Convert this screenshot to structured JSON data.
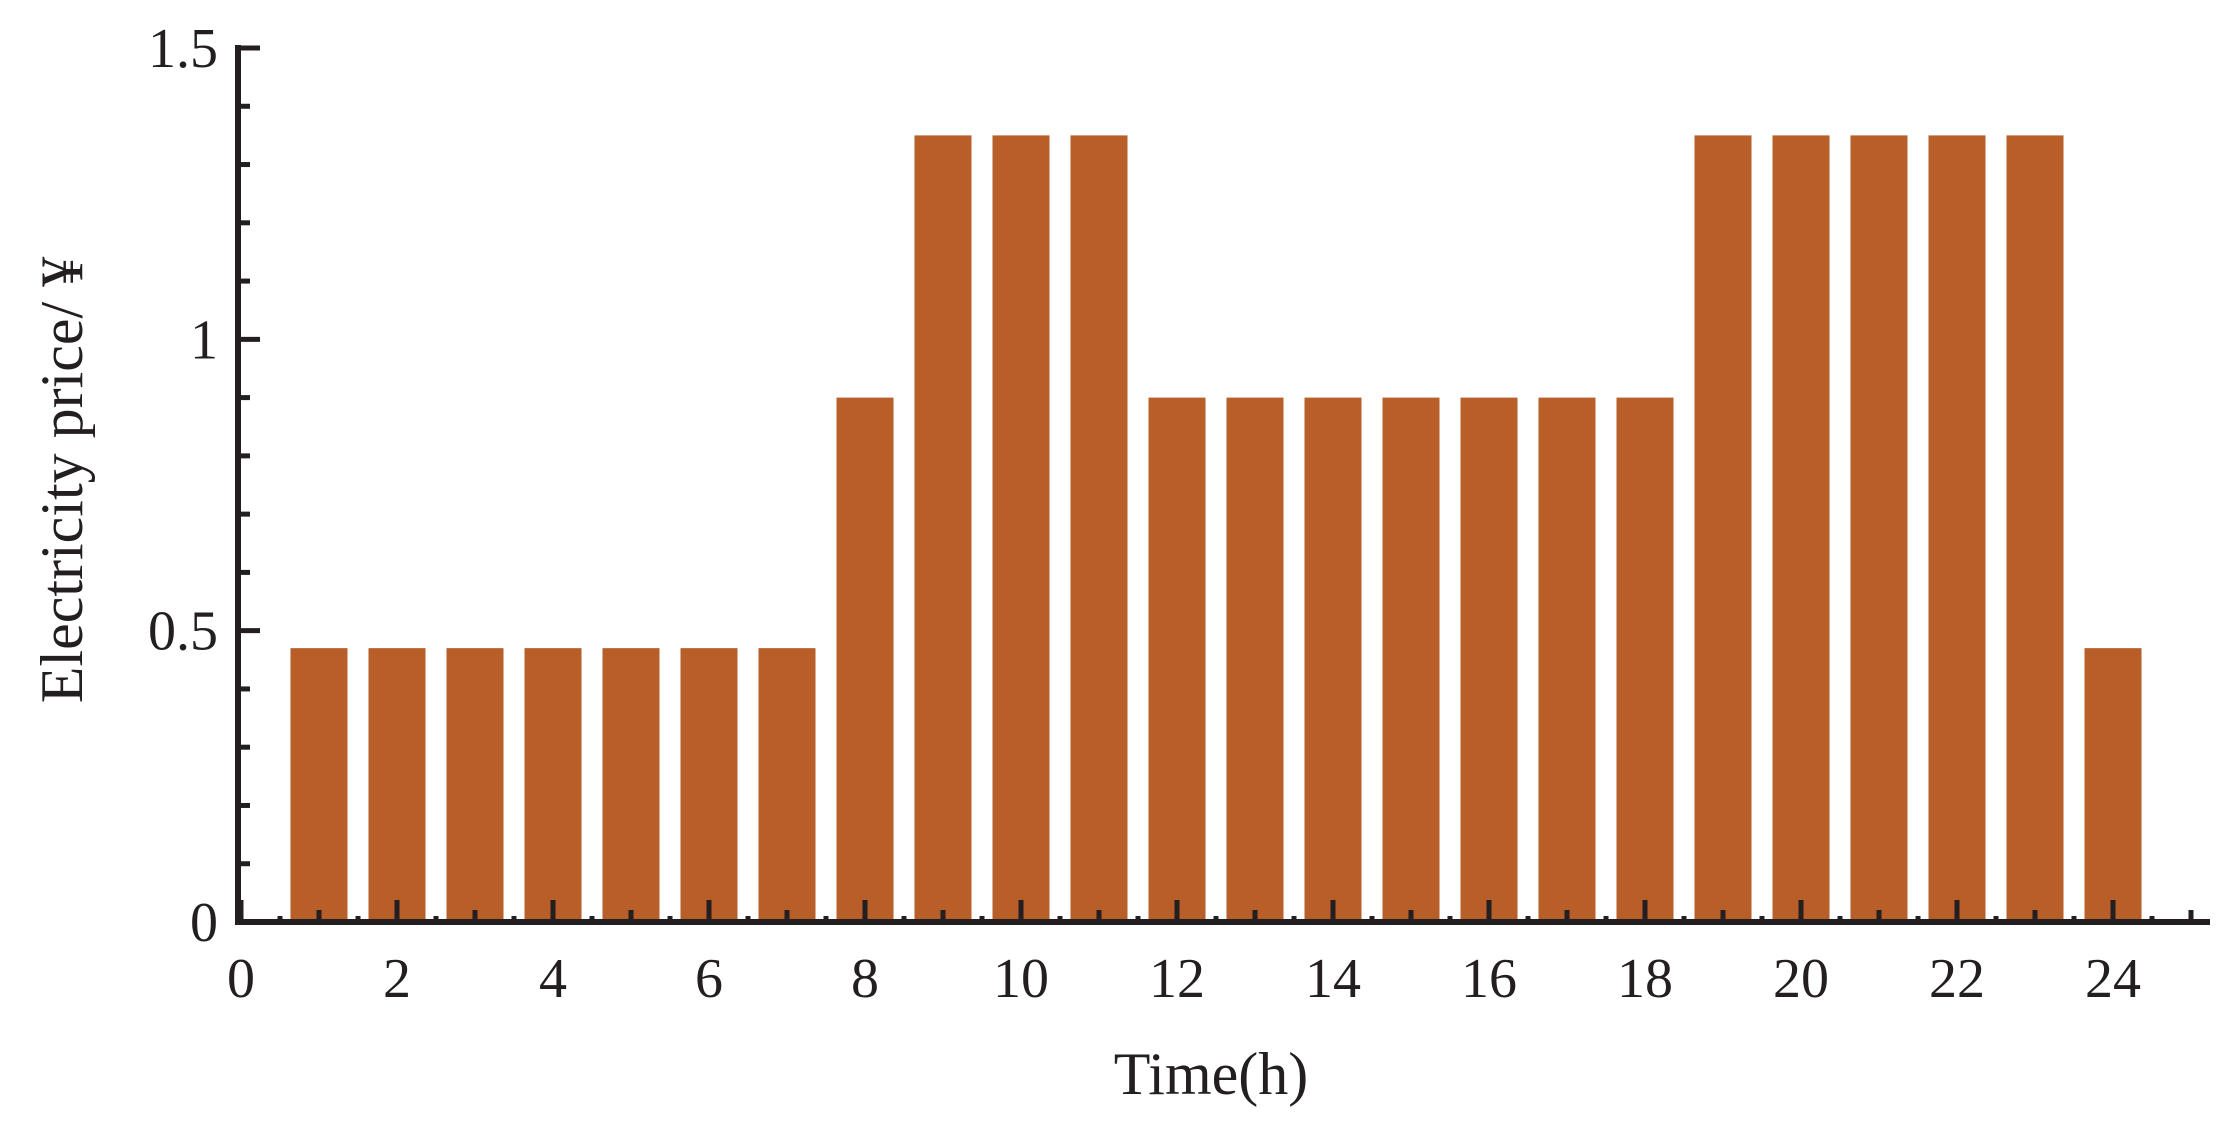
{
  "chart_data": {
    "type": "bar",
    "xlabel": "Time(h)",
    "ylabel": "Electricity price/ ¥",
    "x": [
      1,
      2,
      3,
      4,
      5,
      6,
      7,
      8,
      9,
      10,
      11,
      12,
      13,
      14,
      15,
      16,
      17,
      18,
      19,
      20,
      21,
      22,
      23,
      24
    ],
    "values": [
      0.47,
      0.47,
      0.47,
      0.47,
      0.47,
      0.47,
      0.47,
      0.9,
      1.35,
      1.35,
      1.35,
      0.9,
      0.9,
      0.9,
      0.9,
      0.9,
      0.9,
      0.9,
      1.35,
      1.35,
      1.35,
      1.35,
      1.35,
      0.47
    ],
    "xlim": [
      0,
      25
    ],
    "ylim": [
      0,
      1.5
    ],
    "x_ticks": [
      0,
      2,
      4,
      6,
      8,
      10,
      12,
      14,
      16,
      18,
      20,
      22,
      24
    ],
    "x_tick_labels": [
      "0",
      "2",
      "4",
      "6",
      "8",
      "10",
      "12",
      "14",
      "16",
      "18",
      "20",
      "22",
      "24"
    ],
    "y_ticks": [
      0,
      0.5,
      1,
      1.5
    ],
    "y_tick_labels": [
      "0",
      "0.5",
      "1",
      "1.5"
    ],
    "grid": false,
    "legend": "none",
    "bar_color": "#b85e28",
    "axis_color": "#231f20"
  }
}
